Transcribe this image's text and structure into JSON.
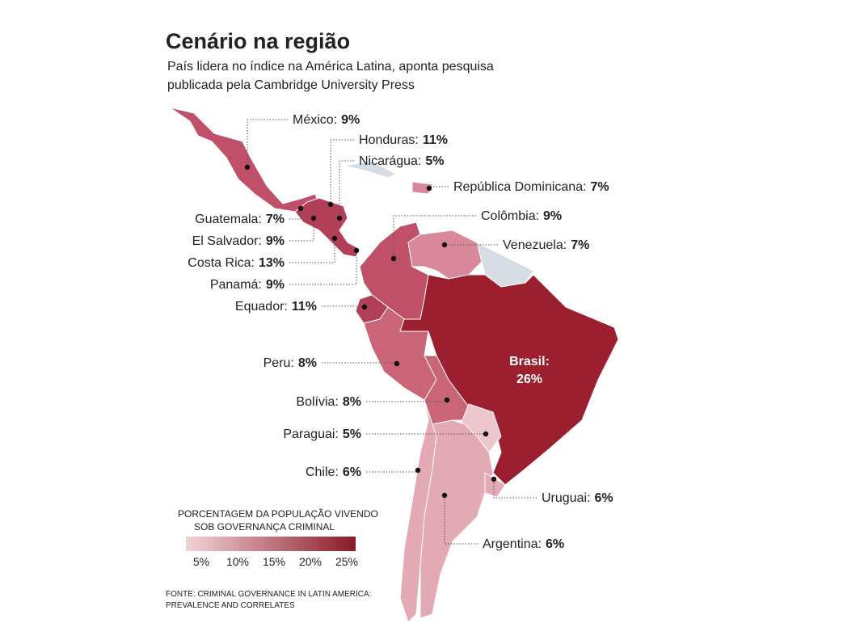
{
  "header": {
    "title": "Cenário na região",
    "subtitle": [
      "País lidera no índice na América Latina, aponta pesquisa",
      "publicada pela Cambridge University Press"
    ]
  },
  "countries": [
    {
      "name": "México:",
      "value": "9%"
    },
    {
      "name": "Honduras:",
      "value": "11%"
    },
    {
      "name": "Nicarágua:",
      "value": "5%"
    },
    {
      "name": "República Dominicana:",
      "value": "7%"
    },
    {
      "name": "Guatemala:",
      "value": "7%"
    },
    {
      "name": "El Salvador:",
      "value": "9%"
    },
    {
      "name": "Costa Rica:",
      "value": "13%"
    },
    {
      "name": "Panamá:",
      "value": "9%"
    },
    {
      "name": "Equador:",
      "value": "11%"
    },
    {
      "name": "Colômbia:",
      "value": "9%"
    },
    {
      "name": "Venezuela:",
      "value": "7%"
    },
    {
      "name": "Brasil:",
      "value": "26%"
    },
    {
      "name": "Peru:",
      "value": "8%"
    },
    {
      "name": "Bolívia:",
      "value": "8%"
    },
    {
      "name": "Paraguai:",
      "value": "5%"
    },
    {
      "name": "Chile:",
      "value": "6%"
    },
    {
      "name": "Uruguai:",
      "value": "6%"
    },
    {
      "name": "Argentina:",
      "value": "6%"
    }
  ],
  "legend": {
    "title": [
      "PORCENTAGEM DA POPULAÇÃO VIVENDO",
      "SOB GOVERNANÇA CRIMINAL"
    ],
    "ticks": [
      "5%",
      "10%",
      "15%",
      "20%",
      "25%"
    ]
  },
  "source": [
    "FONTE: CRIMINAL GOVERNANCE IN LATIN AMERICA:",
    "PREVALENCE AND CORRELATES"
  ]
}
